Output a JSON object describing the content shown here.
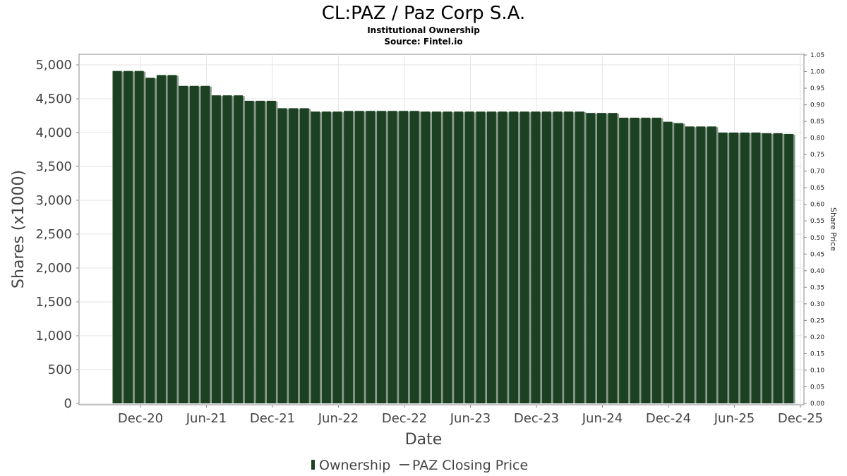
{
  "chart_data": {
    "type": "bar",
    "title": "CL:PAZ / Paz Corp S.A.",
    "subtitle": "Institutional Ownership",
    "source": "Source: Fintel.io",
    "xlabel": "Date",
    "ylabel": "Shares (x1000)",
    "y2label": "Share Price",
    "ylim": [
      0,
      5000
    ],
    "y2lim": [
      0,
      1.05
    ],
    "grid": true,
    "y_ticks": [
      "0",
      "500",
      "1,000",
      "1,500",
      "2,000",
      "2,500",
      "3,000",
      "3,500",
      "4,000",
      "4,500",
      "5,000"
    ],
    "y2_ticks": [
      "0.00",
      "0.05",
      "0.10",
      "0.15",
      "0.20",
      "0.25",
      "0.30",
      "0.35",
      "0.40",
      "0.45",
      "0.50",
      "0.55",
      "0.60",
      "0.65",
      "0.70",
      "0.75",
      "0.80",
      "0.85",
      "0.90",
      "0.95",
      "1.00",
      "1.05"
    ],
    "x_ticks": [
      "Dec-20",
      "Jun-21",
      "Dec-21",
      "Jun-22",
      "Dec-22",
      "Jun-23",
      "Dec-23",
      "Jun-24",
      "Dec-24",
      "Jun-25",
      "Dec-25"
    ],
    "series": [
      {
        "name": "Ownership",
        "color": "#1b4122",
        "values": [
          4910,
          4910,
          4910,
          4810,
          4850,
          4850,
          4690,
          4690,
          4690,
          4550,
          4550,
          4550,
          4470,
          4470,
          4470,
          4360,
          4360,
          4360,
          4310,
          4310,
          4310,
          4320,
          4320,
          4320,
          4320,
          4320,
          4320,
          4320,
          4310,
          4310,
          4310,
          4310,
          4310,
          4310,
          4310,
          4310,
          4310,
          4310,
          4310,
          4310,
          4310,
          4310,
          4310,
          4290,
          4290,
          4290,
          4220,
          4220,
          4220,
          4220,
          4160,
          4140,
          4090,
          4090,
          4090,
          4000,
          4000,
          4000,
          4000,
          3990,
          3990,
          3980
        ]
      },
      {
        "name": "PAZ Closing Price",
        "color": "#555555",
        "values": []
      }
    ],
    "legend": {
      "position": "bottom",
      "items": [
        {
          "label": "Ownership",
          "color": "#1b4122"
        },
        {
          "label": "PAZ Closing Price",
          "color": "#555555"
        }
      ]
    }
  }
}
